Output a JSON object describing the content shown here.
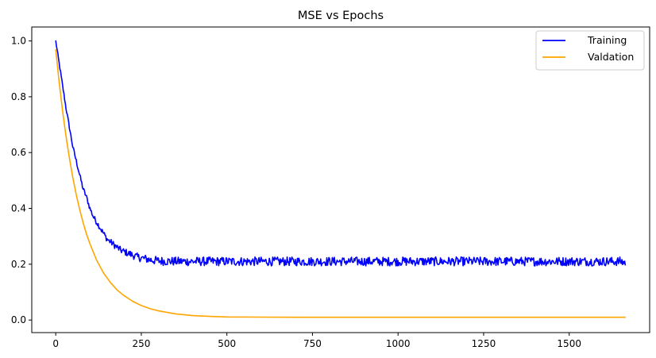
{
  "chart_data": {
    "type": "line",
    "title": "MSE vs Epochs",
    "xlabel": "",
    "ylabel": "",
    "xlim": [
      -70,
      1735
    ],
    "ylim": [
      -0.045,
      1.05
    ],
    "x_ticks": [
      0,
      250,
      500,
      750,
      1000,
      1250,
      1500
    ],
    "y_ticks": [
      0.0,
      0.2,
      0.4,
      0.6,
      0.8,
      1.0
    ],
    "x_tick_labels": [
      "0",
      "250",
      "500",
      "750",
      "1000",
      "1250",
      "1500"
    ],
    "y_tick_labels": [
      "0.0",
      "0.2",
      "0.4",
      "0.6",
      "0.8",
      "1.0"
    ],
    "grid": false,
    "legend": {
      "placement": "top-right"
    },
    "series": [
      {
        "name": "Training",
        "color": "#0000ff",
        "x": [
          0,
          10,
          20,
          30,
          40,
          50,
          60,
          70,
          80,
          90,
          100,
          110,
          120,
          130,
          140,
          150,
          160,
          170,
          180,
          190,
          200,
          220,
          240,
          260,
          280,
          300,
          350,
          400,
          450,
          500,
          550,
          600,
          650,
          700,
          750,
          800,
          850,
          900,
          950,
          1000,
          1050,
          1100,
          1150,
          1200,
          1250,
          1300,
          1350,
          1400,
          1450,
          1500,
          1550,
          1600,
          1650,
          1665
        ],
        "y": [
          1.0,
          0.92,
          0.84,
          0.76,
          0.69,
          0.62,
          0.57,
          0.52,
          0.47,
          0.44,
          0.4,
          0.37,
          0.35,
          0.33,
          0.31,
          0.29,
          0.28,
          0.27,
          0.26,
          0.25,
          0.245,
          0.235,
          0.225,
          0.22,
          0.215,
          0.212,
          0.21,
          0.21,
          0.21,
          0.21,
          0.21,
          0.21,
          0.21,
          0.21,
          0.21,
          0.21,
          0.21,
          0.21,
          0.21,
          0.21,
          0.21,
          0.21,
          0.21,
          0.21,
          0.21,
          0.21,
          0.21,
          0.21,
          0.21,
          0.21,
          0.21,
          0.21,
          0.21,
          0.205
        ]
      },
      {
        "name": "Valdation",
        "color": "#ffa500",
        "x": [
          0,
          10,
          20,
          30,
          40,
          50,
          60,
          70,
          80,
          90,
          100,
          120,
          140,
          160,
          180,
          200,
          225,
          250,
          275,
          300,
          350,
          400,
          450,
          500,
          600,
          700,
          800,
          1000,
          1200,
          1400,
          1665
        ],
        "y": [
          0.97,
          0.853,
          0.749,
          0.659,
          0.58,
          0.51,
          0.449,
          0.396,
          0.349,
          0.308,
          0.273,
          0.213,
          0.168,
          0.134,
          0.107,
          0.087,
          0.067,
          0.052,
          0.041,
          0.033,
          0.022,
          0.016,
          0.013,
          0.011,
          0.0105,
          0.01,
          0.01,
          0.01,
          0.01,
          0.01,
          0.01
        ]
      }
    ]
  }
}
